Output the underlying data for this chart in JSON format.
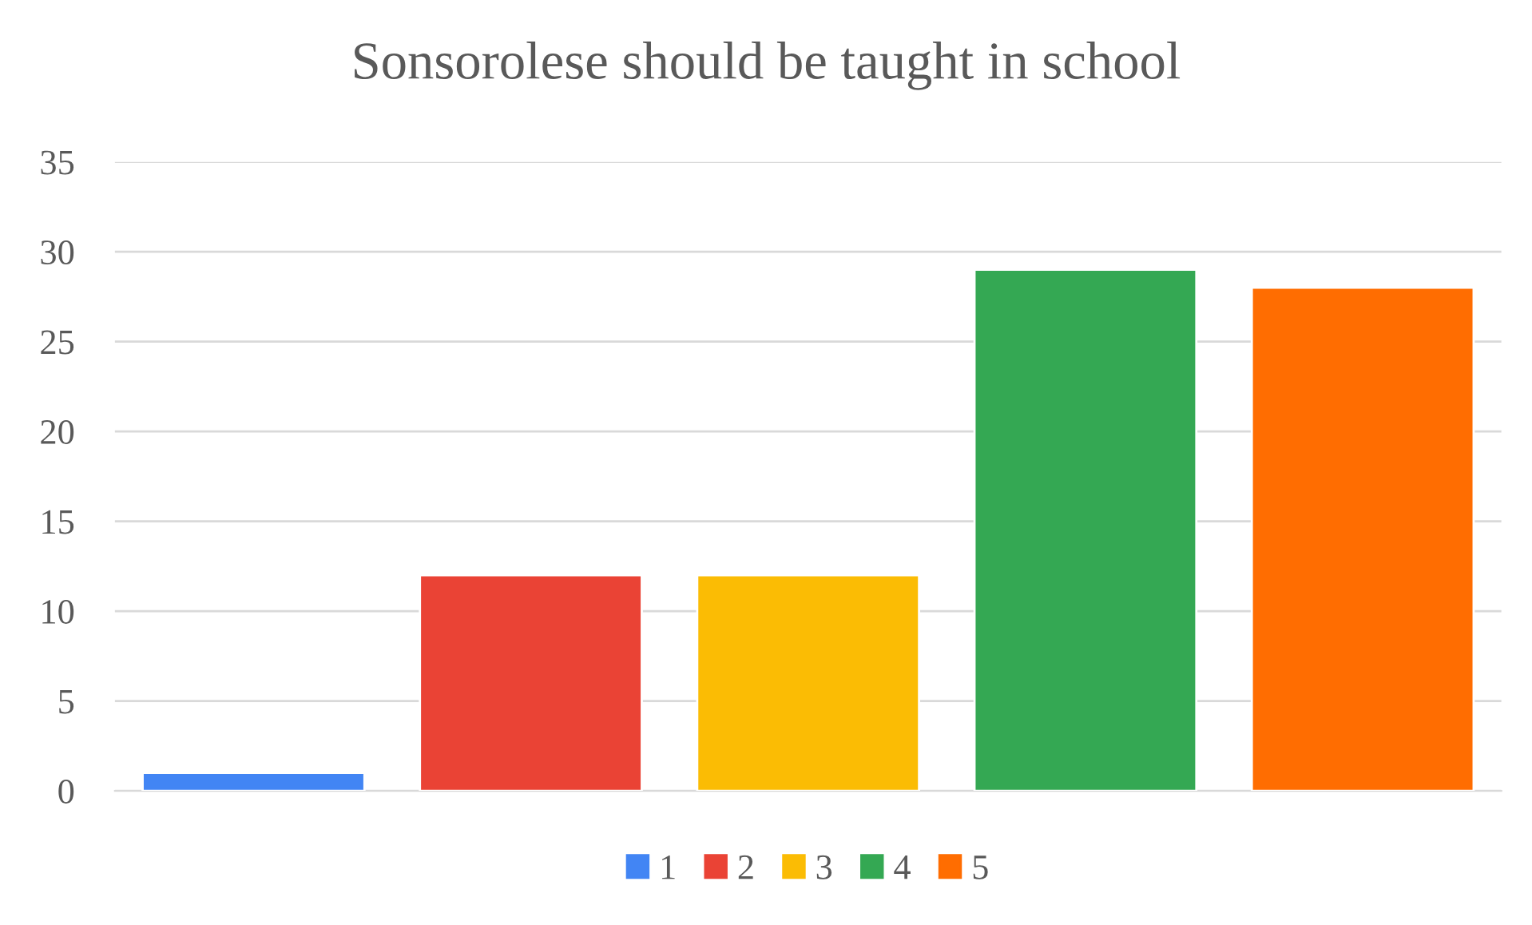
{
  "chart_data": {
    "type": "bar",
    "title": "Sonsorolese should be taught in school",
    "categories": [
      null,
      null,
      null,
      null,
      null
    ],
    "series": [
      {
        "name": "1",
        "color": "#4285f4",
        "values": [
          1,
          null,
          null,
          null,
          null
        ]
      },
      {
        "name": "2",
        "color": "#ea4335",
        "values": [
          null,
          12,
          null,
          null,
          null
        ]
      },
      {
        "name": "3",
        "color": "#fbbc04",
        "values": [
          null,
          null,
          12,
          null,
          null
        ]
      },
      {
        "name": "4",
        "color": "#34a853",
        "values": [
          null,
          null,
          null,
          29,
          null
        ]
      },
      {
        "name": "5",
        "color": "#ff6d01",
        "values": [
          null,
          null,
          null,
          null,
          28
        ]
      }
    ],
    "ylim": [
      0,
      35
    ],
    "yticks": [
      0,
      5,
      10,
      15,
      20,
      25,
      30,
      35
    ],
    "grid": "y",
    "legend": "bottom"
  }
}
